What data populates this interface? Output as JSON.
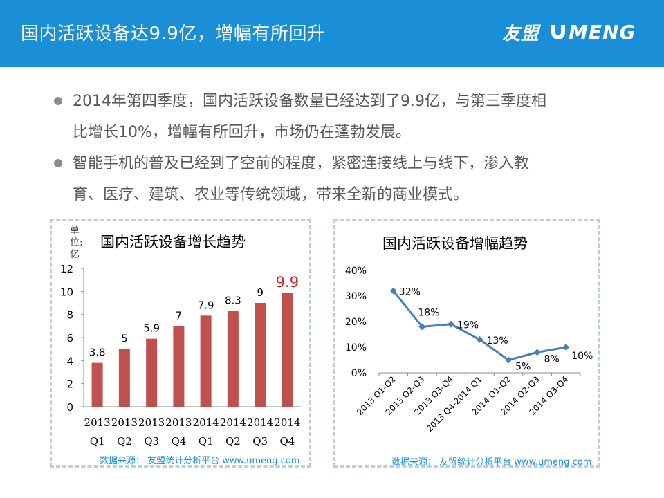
{
  "header": {
    "title": "国内活跃设备达9.9亿，增幅有所回升",
    "logo_cn": "友盟",
    "logo_en": "MENG",
    "logo_u": "U"
  },
  "bullets": [
    {
      "line1": "2014年第四季度，国内活跃设备数量已经达到了9.9亿，与第三季度相",
      "line2": "比增长10%，增幅有所回升，市场仍在蓬勃发展。"
    },
    {
      "line1": "智能手机的普及已经到了空前的程度，紧密连接线上与线下，渗入教",
      "line2": "育、医疗、建筑、农业等传统领域，带来全新的商业模式。"
    }
  ],
  "colors": {
    "header_bg": "#1a8fd8",
    "bar": "#c0504d",
    "line": "#4a7ebb",
    "highlight": "#d42020",
    "border": "#b9cfe0"
  },
  "chart_data": [
    {
      "type": "bar",
      "title": "国内活跃设备增长趋势",
      "unit_label": [
        "单",
        "位:",
        "亿"
      ],
      "categories": [
        [
          "2013",
          "Q1"
        ],
        [
          "2013",
          "Q2"
        ],
        [
          "2013",
          "Q3"
        ],
        [
          "2013",
          "Q4"
        ],
        [
          "2014",
          "Q1"
        ],
        [
          "2014",
          "Q2"
        ],
        [
          "2014",
          "Q3"
        ],
        [
          "2014",
          "Q4"
        ]
      ],
      "values": [
        3.8,
        5,
        5.9,
        7,
        7.9,
        8.3,
        9,
        9.9
      ],
      "labels": [
        "3.8",
        "5",
        "5.9",
        "7",
        "7.9",
        "8.3",
        "9",
        "9.9"
      ],
      "highlight_index": 7,
      "ylim": [
        0,
        12
      ],
      "yticks": [
        0,
        2,
        4,
        6,
        8,
        10,
        12
      ],
      "source": "数据来源：  友盟统计分析平台 www.umeng.com"
    },
    {
      "type": "line",
      "title": "国内活跃设备增幅趋势",
      "categories": [
        "2013 Q1-Q2",
        "2013 Q2-Q3",
        "2013 Q3-Q4",
        "2013 Q4-2014 Q1",
        "2014 Q1-Q2",
        "2014 Q2-Q3",
        "2014 Q3-Q4"
      ],
      "values": [
        32,
        18,
        19,
        13,
        5,
        8,
        10
      ],
      "labels": [
        "32%",
        "18%",
        "19%",
        "13%",
        "5%",
        "8%",
        "10%"
      ],
      "ylim": [
        0,
        40
      ],
      "yticks": [
        0,
        10,
        20,
        30,
        40
      ],
      "ytick_labels": [
        "0%",
        "10%",
        "20%",
        "30%",
        "40%"
      ],
      "source": "数据来源：  友盟统计分析平台 www.umeng.com"
    }
  ]
}
